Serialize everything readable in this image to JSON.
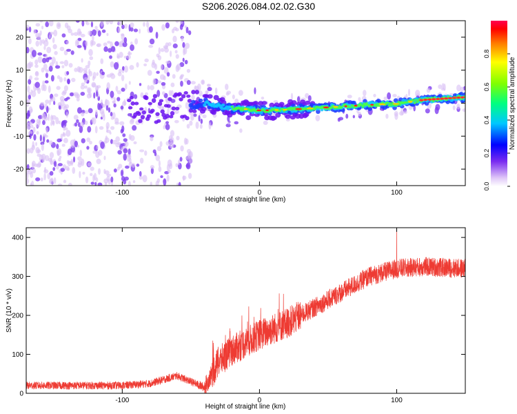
{
  "title": "S206.2026.084.02.02.G30",
  "colors": {
    "snr_line": "#ee3b33",
    "frame": "#000000",
    "spectrum_low": "#cfa8f5",
    "spectrum_mid": "#6a12f0"
  },
  "chart_data": [
    {
      "type": "heatmap",
      "name": "spectrogram",
      "xlabel": "Height of straight line (km)",
      "ylabel": "Frequency (Hz)",
      "xlim": [
        -170,
        150
      ],
      "ylim": [
        -25,
        25
      ],
      "xticks": [
        -100,
        0,
        100
      ],
      "yticks": [
        -20,
        -10,
        0,
        10,
        20
      ],
      "xtick_labels": [
        "-100",
        "0",
        "100"
      ],
      "ytick_labels": [
        "-20",
        "-10",
        "0",
        "10",
        "20"
      ],
      "ridge": {
        "description": "dominant frequency ridge",
        "x": [
          -80,
          -60,
          -40,
          -20,
          0,
          20,
          40,
          60,
          80,
          100,
          120,
          150
        ],
        "y": [
          -2,
          -1,
          0,
          -1.5,
          -2.2,
          -2.0,
          -1.5,
          -1.0,
          -0.5,
          -0.2,
          1.0,
          1.8
        ]
      },
      "colorbar": {
        "label": "Normalized spectral amplitude",
        "range": [
          0,
          1
        ],
        "ticks": [
          0.0,
          0.2,
          0.4,
          0.6,
          0.8
        ],
        "tick_labels": [
          "0.0",
          "0.2",
          "0.4",
          "0.6",
          "0.8"
        ]
      }
    },
    {
      "type": "line",
      "name": "snr",
      "xlabel": "Height of straight line (km)",
      "ylabel": "SNR (10 * v/v)",
      "xlim": [
        -170,
        150
      ],
      "ylim": [
        0,
        425
      ],
      "xticks": [
        -100,
        0,
        100
      ],
      "yticks": [
        0,
        100,
        200,
        300,
        400
      ],
      "xtick_labels": [
        "-100",
        "0",
        "100"
      ],
      "ytick_labels": [
        "0",
        "100",
        "200",
        "300",
        "400"
      ],
      "trend": {
        "x": [
          -170,
          -100,
          -80,
          -60,
          -50,
          -40,
          -30,
          -20,
          0,
          20,
          40,
          60,
          80,
          100,
          120,
          150
        ],
        "y": [
          20,
          20,
          25,
          45,
          30,
          15,
          80,
          110,
          150,
          180,
          220,
          260,
          300,
          320,
          325,
          320
        ]
      },
      "noise_amplitude": 25,
      "spike": {
        "x": 100,
        "y": 425
      }
    }
  ]
}
